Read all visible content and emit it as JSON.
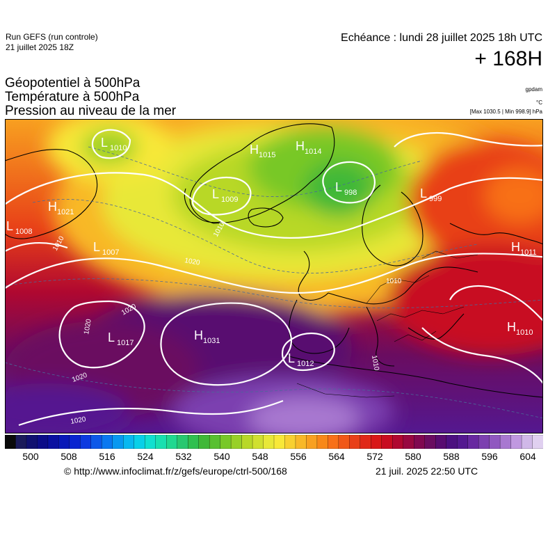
{
  "header": {
    "run_title": "Run GEFS (run controle)",
    "run_date": "21 juillet 2025 18Z",
    "valid_time": "Echéance : lundi 28 juillet 2025 18h UTC",
    "lead_time": "+ 168H"
  },
  "fields": {
    "line1": "Géopotentiel à 500hPa",
    "line2": "Température à 500hPa",
    "line3": "Pression au niveau de la mer"
  },
  "units": {
    "geopotential": "gpdam",
    "temperature": "°C",
    "pressure_range": "[Max 1030.5 | Min 998.9] hPa"
  },
  "pressure_centers": [
    {
      "type": "H",
      "value": "1015"
    },
    {
      "type": "H",
      "value": "1014"
    },
    {
      "type": "L",
      "value": "998"
    },
    {
      "type": "H",
      "value": "1021"
    },
    {
      "type": "L",
      "value": "1008"
    },
    {
      "type": "L",
      "value": "1007"
    },
    {
      "type": "H",
      "value": "1031"
    },
    {
      "type": "L",
      "value": "1017"
    },
    {
      "type": "L",
      "value": "1012"
    },
    {
      "type": "H",
      "value": "1011"
    },
    {
      "type": "H",
      "value": "1010"
    },
    {
      "type": "L",
      "value": "999"
    },
    {
      "type": "L",
      "value": "1009"
    },
    {
      "type": "L",
      "value": "1010"
    }
  ],
  "isobar_labels": [
    "1020",
    "1020",
    "1020",
    "1020",
    "1020",
    "1010",
    "1010",
    "1010",
    "1010"
  ],
  "colorbar": {
    "ticks": [
      "500",
      "508",
      "516",
      "524",
      "532",
      "540",
      "548",
      "556",
      "564",
      "572",
      "580",
      "588",
      "596",
      "604"
    ],
    "colors": [
      "#0a0a0a",
      "#1a1a5a",
      "#101070",
      "#0c0c88",
      "#0a10a0",
      "#0818b8",
      "#0a24d0",
      "#0c3ae0",
      "#0c58e8",
      "#0a78f0",
      "#0898f0",
      "#08b8f0",
      "#08d0e8",
      "#10e0d0",
      "#18e0b0",
      "#20d890",
      "#28c870",
      "#30c050",
      "#40b838",
      "#58c030",
      "#78c828",
      "#98d028",
      "#b8d828",
      "#d0e030",
      "#e8e838",
      "#f8e838",
      "#f8d030",
      "#f8b828",
      "#f8a020",
      "#f88818",
      "#f87018",
      "#f05818",
      "#e84018",
      "#e02818",
      "#d81818",
      "#c80c20",
      "#b00830",
      "#980840",
      "#800850",
      "#6a0c60",
      "#580c70",
      "#4c1080",
      "#541890",
      "#6828a0",
      "#7c40b0",
      "#9058c0",
      "#a878d0",
      "#c098e0",
      "#d0b8e8",
      "#e0d0f0"
    ]
  },
  "footer": {
    "source": "© http://www.infoclimat.fr/z/gefs/europe/ctrl-500/168",
    "generated": "21 juil. 2025 22:50 UTC"
  }
}
